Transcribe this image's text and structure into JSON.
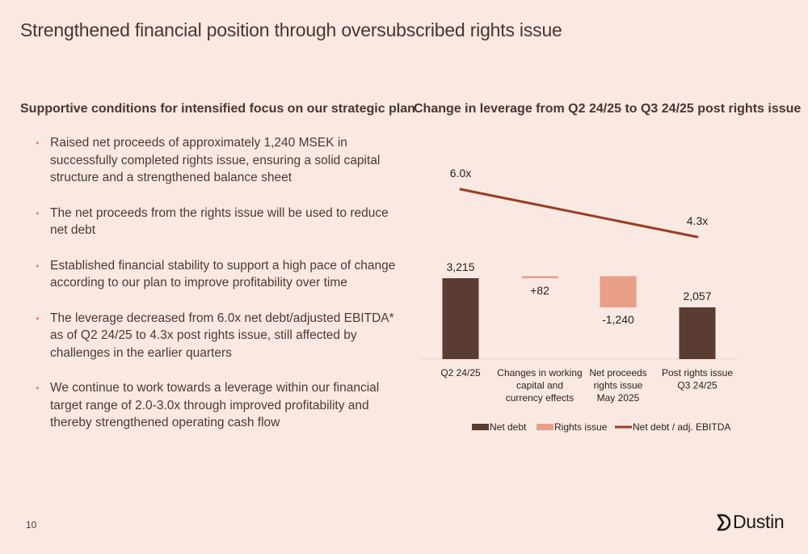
{
  "slide": {
    "title": "Strengthened financial position through oversubscribed rights issue",
    "page_number": "10",
    "logo_text": "Dustin"
  },
  "left": {
    "heading": "Supportive conditions for intensified focus on our strategic plan",
    "bullets": [
      "Raised net proceeds of approximately 1,240 MSEK in successfully completed rights issue, ensuring a solid capital structure and a strengthened balance sheet",
      "The net proceeds from the rights issue will be used to reduce net debt",
      "Established financial stability to support a high pace of change according to our plan to improve profitability over time",
      "The leverage decreased from 6.0x net debt/adjusted EBITDA* as of Q2 24/25 to 4.3x post rights issue, still affected by challenges in the earlier quarters",
      "We continue to work towards a leverage within our financial target range of 2.0-3.0x through improved profitability and thereby strengthened operating cash flow"
    ]
  },
  "colors": {
    "background": "#f9e9e2",
    "net_debt": "#5a3c33",
    "rights_issue": "#e89e87",
    "leverage_line": "#9b3d25",
    "bullet": "#e0957c"
  },
  "chart_data": {
    "type": "bar",
    "subtype": "waterfall-with-line",
    "title": "Change in leverage from Q2 24/25 to Q3 24/25 post rights issue",
    "categories": [
      [
        "Q2 24/25"
      ],
      [
        "Changes in working",
        "capital and",
        "currency effects"
      ],
      [
        "Net proceeds",
        "rights issue",
        "May 2025"
      ],
      [
        "Post rights issue",
        "Q3 24/25"
      ]
    ],
    "bars": [
      {
        "series": "Net debt",
        "kind": "total",
        "value": 3215,
        "label": "3,215"
      },
      {
        "series": "Rights issue",
        "kind": "delta",
        "value": 82,
        "label": "+82"
      },
      {
        "series": "Rights issue",
        "kind": "delta",
        "value": -1240,
        "label": "-1,240"
      },
      {
        "series": "Net debt",
        "kind": "total",
        "value": 2057,
        "label": "2,057"
      }
    ],
    "line": {
      "series": "Net debt / adj. EBITDA",
      "points": [
        {
          "category_index": 0,
          "value": 6.0,
          "label": "6.0x"
        },
        {
          "category_index": 3,
          "value": 4.3,
          "label": "4.3x"
        }
      ]
    },
    "legend": [
      "Net debt",
      "Rights issue",
      "Net debt / adj. EBITDA"
    ],
    "legend_position": "bottom",
    "grid": false
  }
}
